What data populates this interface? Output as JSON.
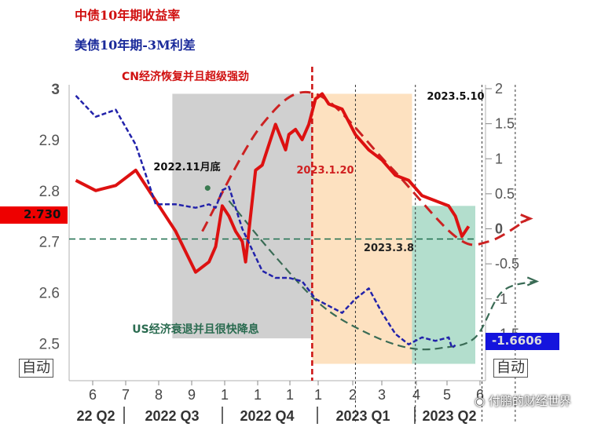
{
  "legend": [
    {
      "name": "中债10年期收益率",
      "color": "#d01010"
    },
    {
      "name": "美债10年期-3M利差",
      "color": "#1a2a9a"
    }
  ],
  "auto_label_left": "自动",
  "auto_label_right": "自动",
  "left_tag": "2.730",
  "right_tag": "-1.6606",
  "watermark": "付鹏的财经世界",
  "chart_data": {
    "type": "line",
    "title": "",
    "x_ticks": [
      "6",
      "7",
      "8",
      "9",
      "1",
      "1",
      "1",
      "1",
      "2",
      "3",
      "4",
      "5",
      "6"
    ],
    "quarter_labels": [
      "22 Q2",
      "2022 Q3",
      "2022 Q4",
      "2023 Q1",
      "2023 Q2"
    ],
    "y_left": {
      "ticks": [
        "3",
        "2.9",
        "2.8",
        "2.7",
        "2.6",
        "2.5"
      ],
      "range": [
        2.45,
        3.0
      ]
    },
    "y_right": {
      "ticks": [
        "2",
        "1.5",
        "1",
        "0.5",
        "0",
        "-0.5",
        "-1",
        "-1.5"
      ],
      "range": [
        -2.0,
        2.0
      ]
    },
    "series": [
      {
        "name": "中债10年期收益率",
        "axis": "left",
        "color": "#dd1111",
        "x": [
          0,
          3,
          6,
          9,
          12,
          15,
          18,
          20,
          21,
          22,
          23,
          24,
          25,
          25.5,
          26,
          27,
          28,
          30,
          31.5,
          32,
          33,
          34,
          35,
          36,
          37,
          38,
          40,
          42,
          44,
          46,
          48,
          50,
          52,
          54,
          56,
          57,
          57.5,
          58,
          59
        ],
        "y": [
          2.82,
          2.8,
          2.81,
          2.84,
          2.78,
          2.72,
          2.64,
          2.66,
          2.69,
          2.77,
          2.75,
          2.72,
          2.7,
          2.66,
          2.72,
          2.84,
          2.85,
          2.93,
          2.88,
          2.91,
          2.92,
          2.9,
          2.93,
          2.98,
          2.99,
          2.97,
          2.96,
          2.91,
          2.88,
          2.86,
          2.83,
          2.82,
          2.79,
          2.78,
          2.77,
          2.75,
          2.73,
          2.71,
          2.73
        ]
      },
      {
        "name": "美债10年期-3M利差",
        "axis": "right",
        "color": "#2222aa",
        "x": [
          0,
          3,
          6,
          9,
          12,
          15,
          18,
          20,
          21,
          22,
          23,
          24,
          25,
          26,
          28,
          30,
          32,
          34,
          36,
          38,
          40,
          42,
          44,
          46,
          48,
          50,
          52,
          54,
          56,
          56.5,
          57
        ],
        "y": [
          1.9,
          1.6,
          1.7,
          1.2,
          0.35,
          0.35,
          0.3,
          0.35,
          0.3,
          0.55,
          0.6,
          0.3,
          0.0,
          -0.2,
          -0.6,
          -0.7,
          -0.7,
          -0.75,
          -1.0,
          -1.1,
          -1.2,
          -1.0,
          -0.85,
          -1.2,
          -1.5,
          -1.65,
          -1.55,
          -1.6,
          -1.55,
          -1.7,
          -1.66
        ]
      }
    ],
    "x_range": [
      -1,
      60
    ],
    "trend_lines": [
      {
        "color": "#cc2222",
        "x": [
          19,
          28,
          36,
          47,
          57,
          62,
          68
        ],
        "y": [
          2.72,
          2.93,
          2.99,
          2.85,
          2.71,
          2.7,
          2.745
        ],
        "axis": "left"
      },
      {
        "color": "#3a6b55",
        "x": [
          23,
          30,
          37,
          44,
          50,
          55,
          60,
          64,
          69
        ],
        "y": [
          0.4,
          -0.4,
          -1.1,
          -1.5,
          -1.7,
          -1.7,
          -1.55,
          -0.9,
          -0.75
        ],
        "axis": "right"
      },
      {
        "color": "#1e6e4e",
        "x": [
          -1,
          60
        ],
        "y": [
          2.705,
          2.705
        ],
        "axis": "left"
      }
    ],
    "shaded_regions": [
      {
        "x_range": [
          14.5,
          35.5
        ],
        "y_range_left": [
          2.51,
          2.99
        ],
        "color": "#c8c8c8"
      },
      {
        "x_range": [
          35.5,
          50.5
        ],
        "y_range_left": [
          2.46,
          2.99
        ],
        "color": "#fddcb5"
      },
      {
        "x_range": [
          50.5,
          60
        ],
        "y_range_left": [
          2.46,
          2.77
        ],
        "color": "#a6d8c4"
      }
    ],
    "vertical_lines": [
      {
        "x": 35.5,
        "color": "#cc1111"
      },
      {
        "x": 42,
        "color": "#333333"
      },
      {
        "x": 51,
        "color": "#333333"
      },
      {
        "x": 61,
        "color": "#333333"
      },
      {
        "x": 66,
        "color": "#333333"
      }
    ],
    "annotations": [
      {
        "text": "CN经济恢复并且超级强劲",
        "color": "#d01010"
      },
      {
        "text": "US经济衰退并且很快降息",
        "color": "#2a6b50"
      },
      {
        "text": "2022.11月底",
        "color": "#111111"
      },
      {
        "text": "2023.1.20",
        "color": "#d02020"
      },
      {
        "text": "2023.3.8",
        "color": "#222222"
      },
      {
        "text": "2023.5.10",
        "color": "#111111"
      }
    ],
    "highlight_point": {
      "x": 19.8,
      "y": 2.805,
      "color": "#3a7a50"
    }
  }
}
